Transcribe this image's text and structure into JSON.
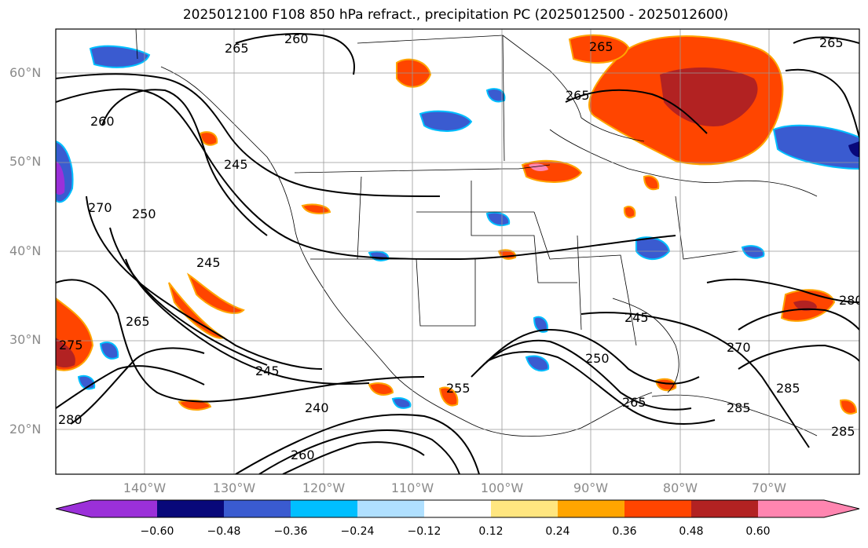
{
  "title": "2025012100 F108 850 hPa refract., precipitation PC (2025012500 - 2025012600)",
  "lat_labels": [
    "60°N",
    "50°N",
    "40°N",
    "30°N",
    "20°N"
  ],
  "lon_labels": [
    "140°W",
    "130°W",
    "120°W",
    "110°W",
    "100°W",
    "90°W",
    "80°W",
    "70°W"
  ],
  "colorbar": {
    "ticks": [
      "−0.60",
      "−0.48",
      "−0.36",
      "−0.24",
      "−0.12",
      "0.12",
      "0.24",
      "0.36",
      "0.48",
      "0.60"
    ],
    "colors": [
      "#9b30d9",
      "#08087a",
      "#3a5bd0",
      "#00bfff",
      "#b0e0ff",
      "#ffffff",
      "#ffe680",
      "#ffa500",
      "#ff4500",
      "#b22222",
      "#ff85b0"
    ]
  },
  "contour_labels": [
    "265",
    "260",
    "255",
    "250",
    "245",
    "240",
    "270",
    "275",
    "280",
    "285"
  ],
  "colors": {
    "positive_fill": "#ff4500",
    "strong_positive": "#b22222",
    "negative_fill": "#3a5bd0",
    "contour": "#000000",
    "grid": "#999999"
  }
}
